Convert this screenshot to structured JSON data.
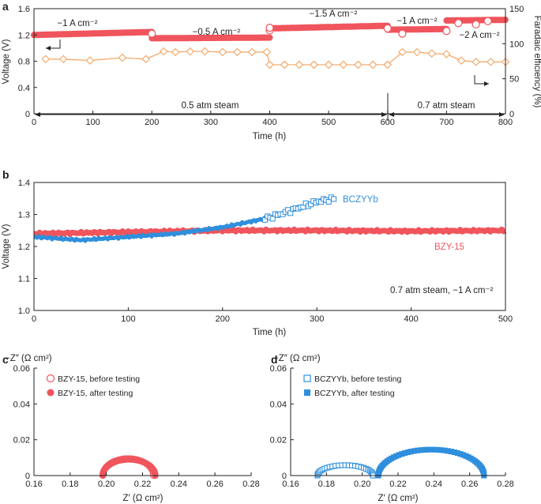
{
  "colors": {
    "red": "#f0545c",
    "blue": "#2f8fdd",
    "orange": "#f4a460",
    "axis": "#231f20"
  },
  "chart_data": [
    {
      "panel": "a",
      "type": "line",
      "xlabel": "Time (h)",
      "ylabel": "Voltage (V)",
      "y2label": "Faradaic efficiency (%)",
      "xlim": [
        0,
        800
      ],
      "ylim": [
        0,
        1.6
      ],
      "y2lim": [
        0,
        150
      ],
      "xticks": [
        "0",
        "100",
        "200",
        "300",
        "400",
        "500",
        "600",
        "700",
        "800"
      ],
      "yticks": [
        "0",
        "0.4",
        "0.8",
        "1.2",
        "1.6"
      ],
      "y2ticks": [
        "0",
        "50",
        "100",
        "150"
      ],
      "voltage_segments": [
        {
          "label": "−1 A cm⁻²",
          "x": [
            0,
            200
          ],
          "y": [
            1.2,
            1.245
          ]
        },
        {
          "label": "−0.5 A cm⁻²",
          "x": [
            200,
            400
          ],
          "y": [
            1.15,
            1.16
          ]
        },
        {
          "label": "−1.5 A cm⁻²",
          "x": [
            400,
            600
          ],
          "y": [
            1.3,
            1.34
          ]
        },
        {
          "label": "−1 A cm⁻²",
          "x": [
            600,
            700
          ],
          "y": [
            1.28,
            1.29
          ]
        },
        {
          "label": "−2 A cm⁻²",
          "x": [
            700,
            800
          ],
          "y": [
            1.42,
            1.43
          ]
        }
      ],
      "open_points": [
        [
          200,
          1.22
        ],
        [
          400,
          1.27
        ],
        [
          400,
          1.31
        ],
        [
          600,
          1.3
        ],
        [
          625,
          1.22
        ],
        [
          700,
          1.26
        ],
        [
          720,
          1.38
        ],
        [
          750,
          1.36
        ],
        [
          770,
          1.41
        ]
      ],
      "faradaic_efficiency": {
        "x": [
          20,
          50,
          95,
          150,
          190,
          220,
          240,
          265,
          290,
          320,
          345,
          370,
          395,
          400,
          425,
          450,
          475,
          500,
          525,
          550,
          575,
          600,
          625,
          650,
          675,
          700,
          725,
          750,
          775,
          800
        ],
        "y": [
          78,
          78,
          76,
          80,
          78,
          89,
          88,
          89,
          89,
          88,
          88,
          88,
          88,
          70,
          70,
          70,
          70,
          70,
          70,
          70,
          70,
          70,
          88,
          88,
          86,
          85,
          76,
          74,
          74,
          74
        ]
      },
      "annotations": {
        "steam_left": "0.5 atm steam",
        "steam_right": "0.7 atm steam"
      }
    },
    {
      "panel": "b",
      "type": "line",
      "xlabel": "Time (h)",
      "ylabel": "Voltage (V)",
      "xlim": [
        0,
        500
      ],
      "ylim": [
        1.0,
        1.4
      ],
      "xticks": [
        "0",
        "100",
        "200",
        "300",
        "400",
        "500"
      ],
      "yticks": [
        "1.0",
        "1.1",
        "1.2",
        "1.3",
        "1.4"
      ],
      "series": [
        {
          "name": "BZY-15",
          "x": [
            0,
            100,
            200,
            300,
            400,
            500
          ],
          "y": [
            1.24,
            1.245,
            1.25,
            1.25,
            1.248,
            1.25
          ]
        },
        {
          "name": "BCZYYb",
          "x": [
            0,
            50,
            100,
            150,
            200,
            250,
            280,
            300,
            320
          ],
          "y": [
            1.23,
            1.22,
            1.23,
            1.24,
            1.26,
            1.29,
            1.32,
            1.34,
            1.35
          ]
        }
      ],
      "annotation": "0.7 atm steam, −1 A cm⁻²"
    },
    {
      "panel": "c",
      "type": "scatter",
      "xlabel": "Z′ (Ω cm²)",
      "ylabel": "−Z″ (Ω cm²)",
      "xlim": [
        0.16,
        0.28
      ],
      "ylim": [
        0,
        0.06
      ],
      "xticks": [
        "0.16",
        "0.18",
        "0.20",
        "0.22",
        "0.24",
        "0.26",
        "0.28"
      ],
      "yticks": [
        "0",
        "0.02",
        "0.04",
        "0.06"
      ],
      "series": [
        {
          "name": "BZY-15, before testing",
          "arc": [
            0.198,
            0.226,
            0.0095
          ]
        },
        {
          "name": "BZY-15, after testing",
          "arc": [
            0.198,
            0.227,
            0.009
          ]
        }
      ]
    },
    {
      "panel": "d",
      "type": "scatter",
      "xlabel": "Z′ (Ω cm²)",
      "ylabel": "−Z″ (Ω cm²)",
      "xlim": [
        0.16,
        0.28
      ],
      "ylim": [
        0,
        0.06
      ],
      "xticks": [
        "0.16",
        "0.18",
        "0.20",
        "0.22",
        "0.24",
        "0.26",
        "0.28"
      ],
      "yticks": [
        "0",
        "0.02",
        "0.04",
        "0.06"
      ],
      "series": [
        {
          "name": "BCZYYb, before testing",
          "arc": [
            0.175,
            0.206,
            0.0058
          ]
        },
        {
          "name": "BCZYYb, after testing",
          "arc": [
            0.209,
            0.268,
            0.0145
          ]
        }
      ]
    }
  ]
}
